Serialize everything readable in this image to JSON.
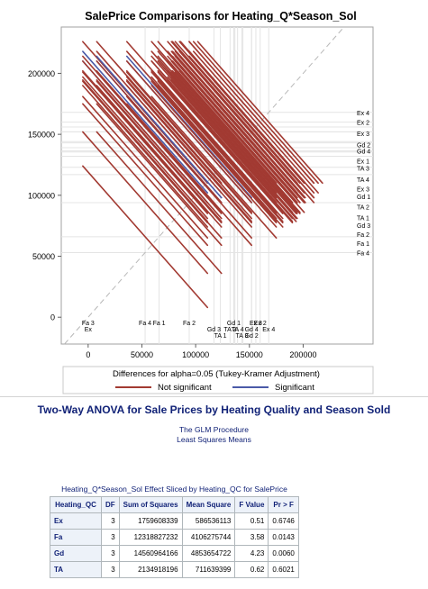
{
  "chart_data": {
    "type": "scatter",
    "title": "SalePrice Comparisons for Heating_Q*Season_Sol",
    "xlabel": "Differences for alpha=0.05 (Tukey-Kramer Adjustment)",
    "xlim": [
      -25000,
      265000
    ],
    "ylim": [
      -22000,
      238000
    ],
    "x_ticks": [
      0,
      50000,
      100000,
      150000,
      200000
    ],
    "y_ticks": [
      0,
      50000,
      100000,
      150000,
      200000
    ],
    "grid": true,
    "legend_position": "bottom",
    "series": [
      {
        "name": "Not significant",
        "color": "#a23a32"
      },
      {
        "name": "Significant",
        "color": "#4a5aa8"
      }
    ],
    "means": [
      {
        "label": "Ex 4",
        "value": 168000
      },
      {
        "label": "Ex 2",
        "value": 160000
      },
      {
        "label": "Ex 3",
        "value": 156000
      },
      {
        "label": "Gd 2",
        "value": 152000
      },
      {
        "label": "Gd 4",
        "value": 152000
      },
      {
        "label": "Ex 1",
        "value": 144000
      },
      {
        "label": "TA 3",
        "value": 143000
      },
      {
        "label": "TA 4",
        "value": 139000
      },
      {
        "label": "Ex 3",
        "value": 136500
      },
      {
        "label": "Gd 1",
        "value": 135500
      },
      {
        "label": "TA 2",
        "value": 132000
      },
      {
        "label": "TA 1",
        "value": 123000
      },
      {
        "label": "Gd 3",
        "value": 117000
      },
      {
        "label": "Fa 2",
        "value": 94000
      },
      {
        "label": "Fa 1",
        "value": 66000
      },
      {
        "label": "Fa 4",
        "value": 53000
      }
    ],
    "x_labels_line1": [
      "Fa 4",
      "Fa 1",
      "Fa 2",
      "Gd 1",
      "Fa 3",
      "Ex 2",
      "Ex 3"
    ],
    "x_labels_line2": [
      "Gd 3",
      "TA 4",
      "Ex",
      "TA 2",
      "Gd 4",
      "Ex 4"
    ],
    "x_labels_line3": [
      "TA 1",
      "TA 3",
      "Gd 2"
    ]
  },
  "section": {
    "title": "Two-Way ANOVA for Sale Prices by Heating Quality and Season Sold",
    "procedure": "The GLM Procedure",
    "subtitle": "Least Squares Means"
  },
  "table": {
    "caption": "Heating_Q*Season_Sol Effect Sliced by Heating_QC for SalePrice",
    "headers": [
      "Heating_QC",
      "DF",
      "Sum of Squares",
      "Mean Square",
      "F Value",
      "Pr > F"
    ],
    "rows": [
      [
        "Ex",
        "3",
        "1759608339",
        "586536113",
        "0.51",
        "0.6746"
      ],
      [
        "Fa",
        "3",
        "12318827232",
        "4106275744",
        "3.58",
        "0.0143"
      ],
      [
        "Gd",
        "3",
        "14560964166",
        "4853654722",
        "4.23",
        "0.0060"
      ],
      [
        "TA",
        "3",
        "2134918196",
        "711639399",
        "0.62",
        "0.6021"
      ]
    ]
  }
}
